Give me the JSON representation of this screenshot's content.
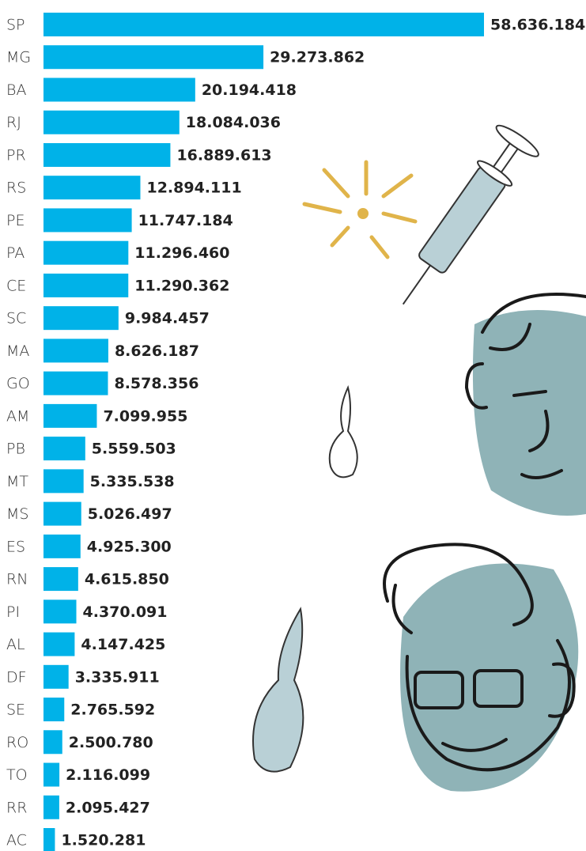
{
  "chart_data": {
    "type": "bar",
    "orientation": "horizontal",
    "color": "#00b2e8",
    "categories": [
      "SP",
      "MG",
      "BA",
      "RJ",
      "PR",
      "RS",
      "PE",
      "PA",
      "CE",
      "SC",
      "MA",
      "GO",
      "AM",
      "PB",
      "MT",
      "MS",
      "ES",
      "RN",
      "PI",
      "AL",
      "DF",
      "SE",
      "RO",
      "TO",
      "RR",
      "AC"
    ],
    "values": [
      58636184,
      29273862,
      20194418,
      18084036,
      16889613,
      12894111,
      11747184,
      11296460,
      11290362,
      9984457,
      8626187,
      8578356,
      7099955,
      5559503,
      5335538,
      5026497,
      4925300,
      4615850,
      4370091,
      4147425,
      3335911,
      2765592,
      2500780,
      2116099,
      2095427,
      1520281
    ],
    "value_labels": [
      "58.636.184",
      "29.273.862",
      "20.194.418",
      "18.084.036",
      "16.889.613",
      "12.894.111",
      "11.747.184",
      "11.296.460",
      "11.290.362",
      "9.984.457",
      "8.626.187",
      "8.578.356",
      "7.099.955",
      "5.559.503",
      "5.335.538",
      "5.026.497",
      "4.925.300",
      "4.615.850",
      "4.370.091",
      "4.147.425",
      "3.335.911",
      "2.765.592",
      "2.500.780",
      "2.116.099",
      "2.095.427",
      "1.520.281"
    ]
  }
}
